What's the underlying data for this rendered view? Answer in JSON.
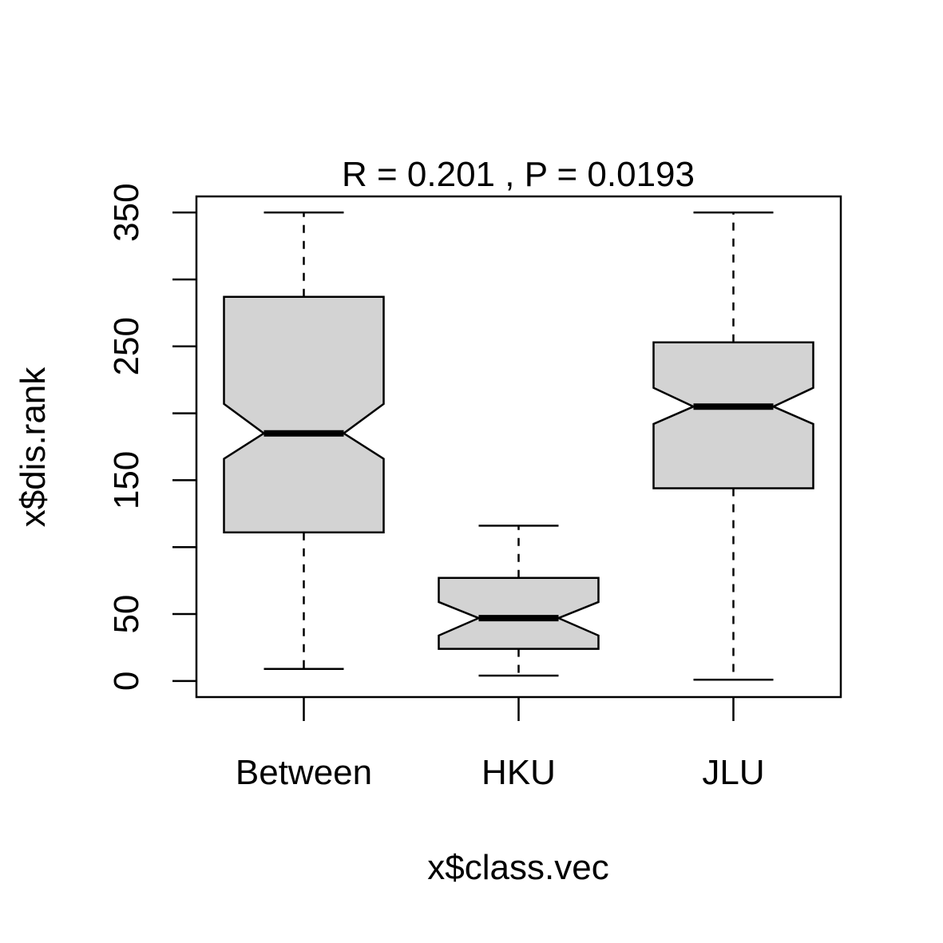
{
  "chart_data": {
    "type": "boxplot",
    "notched": true,
    "title": "R =  0.201 ,  P =  0.0193",
    "xlabel": "x$class.vec",
    "ylabel": "x$dis.rank",
    "categories": [
      "Between",
      "HKU",
      "JLU"
    ],
    "ylim": [
      -12,
      362
    ],
    "yticks": [
      0,
      50,
      100,
      150,
      200,
      250,
      300,
      350
    ],
    "ytick_labels": [
      "0",
      "50",
      "",
      "150",
      "",
      "250",
      "",
      "350"
    ],
    "box_fill": "#d3d3d3",
    "boxes": [
      {
        "name": "Between",
        "whisker_low": 9,
        "q1": 111,
        "notch_low": 166,
        "median": 185,
        "notch_high": 207,
        "q3": 287,
        "whisker_high": 350
      },
      {
        "name": "HKU",
        "whisker_low": 4,
        "q1": 24,
        "notch_low": 34,
        "median": 47,
        "notch_high": 59,
        "q3": 77,
        "whisker_high": 116
      },
      {
        "name": "JLU",
        "whisker_low": 1,
        "q1": 144,
        "notch_low": 192,
        "median": 205,
        "notch_high": 219,
        "q3": 253,
        "whisker_high": 350
      }
    ]
  }
}
